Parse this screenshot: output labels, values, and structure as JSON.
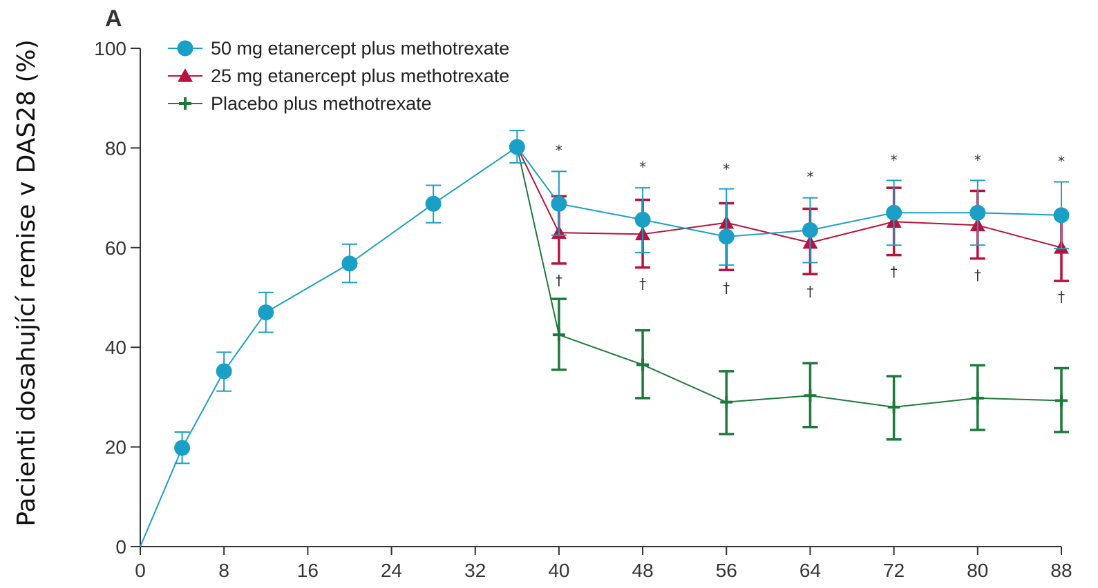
{
  "chart_data": {
    "type": "line",
    "panel_label": "A",
    "xlabel": "",
    "ylabel": "Pacienti dosahující remise v DAS28 (%)",
    "xlim": [
      0,
      88
    ],
    "ylim": [
      0,
      100
    ],
    "x_ticks": [
      "0",
      "8",
      "16",
      "24",
      "32",
      "40",
      "48",
      "56",
      "64",
      "72",
      "80",
      "88"
    ],
    "y_ticks": [
      "0",
      "20",
      "40",
      "60",
      "80",
      "100"
    ],
    "grid": false,
    "legend_position": "top-left",
    "series": [
      {
        "name": "50 mg etanercept plus methotrexate",
        "color": "#1a9fc6",
        "marker": "circle",
        "x": [
          0,
          4,
          8,
          12,
          20,
          28,
          36,
          40,
          48,
          56,
          64,
          72,
          80,
          88
        ],
        "y": [
          0,
          19.8,
          35.2,
          47.0,
          56.8,
          68.8,
          80.2,
          68.8,
          65.6,
          62.2,
          63.5,
          67.0,
          67.0,
          66.5
        ],
        "err_low": [
          null,
          16.7,
          31.2,
          43.0,
          53.0,
          65.0,
          77.0,
          62.5,
          59.0,
          56.5,
          57.0,
          60.5,
          60.5,
          59.8
        ],
        "err_high": [
          null,
          23.0,
          39.0,
          51.0,
          60.7,
          72.5,
          83.5,
          75.3,
          72.0,
          71.8,
          70.0,
          73.5,
          73.5,
          73.2
        ]
      },
      {
        "name": "25 mg etanercept plus methotrexate",
        "color": "#b8123e",
        "marker": "triangle",
        "x": [
          36,
          40,
          48,
          56,
          64,
          72,
          80,
          88
        ],
        "y": [
          80.2,
          63.0,
          62.7,
          65.0,
          61.0,
          65.2,
          64.5,
          60.0
        ],
        "err_low": [
          null,
          56.8,
          56.0,
          55.5,
          54.7,
          58.5,
          57.8,
          53.3
        ],
        "err_high": [
          null,
          70.3,
          69.6,
          68.9,
          67.8,
          72.0,
          71.4,
          66.5
        ]
      },
      {
        "name": "Placebo plus methotrexate",
        "color": "#1e7a3c",
        "marker": "plus",
        "x": [
          36,
          40,
          48,
          56,
          64,
          72,
          80,
          88
        ],
        "y": [
          80.2,
          42.5,
          36.5,
          29.0,
          30.3,
          28.0,
          29.8,
          29.3
        ],
        "err_low": [
          null,
          35.5,
          29.8,
          22.6,
          24.0,
          21.5,
          23.4,
          23.0
        ],
        "err_high": [
          null,
          49.7,
          43.4,
          35.2,
          36.8,
          34.2,
          36.4,
          35.8
        ]
      }
    ],
    "annotations": [
      {
        "text": "*",
        "x": 40,
        "y": 78.5
      },
      {
        "text": "*",
        "x": 48,
        "y": 75.2
      },
      {
        "text": "*",
        "x": 56,
        "y": 74.8
      },
      {
        "text": "*",
        "x": 64,
        "y": 73.2
      },
      {
        "text": "*",
        "x": 72,
        "y": 76.6
      },
      {
        "text": "*",
        "x": 80,
        "y": 76.6
      },
      {
        "text": "*",
        "x": 88,
        "y": 76.3
      },
      {
        "text": "†",
        "x": 40,
        "y": 52.5
      },
      {
        "text": "†",
        "x": 48,
        "y": 51.8
      },
      {
        "text": "†",
        "x": 56,
        "y": 51.0
      },
      {
        "text": "†",
        "x": 64,
        "y": 50.3
      },
      {
        "text": "†",
        "x": 72,
        "y": 54.2
      },
      {
        "text": "†",
        "x": 80,
        "y": 53.5
      },
      {
        "text": "†",
        "x": 88,
        "y": 49.2
      }
    ]
  }
}
